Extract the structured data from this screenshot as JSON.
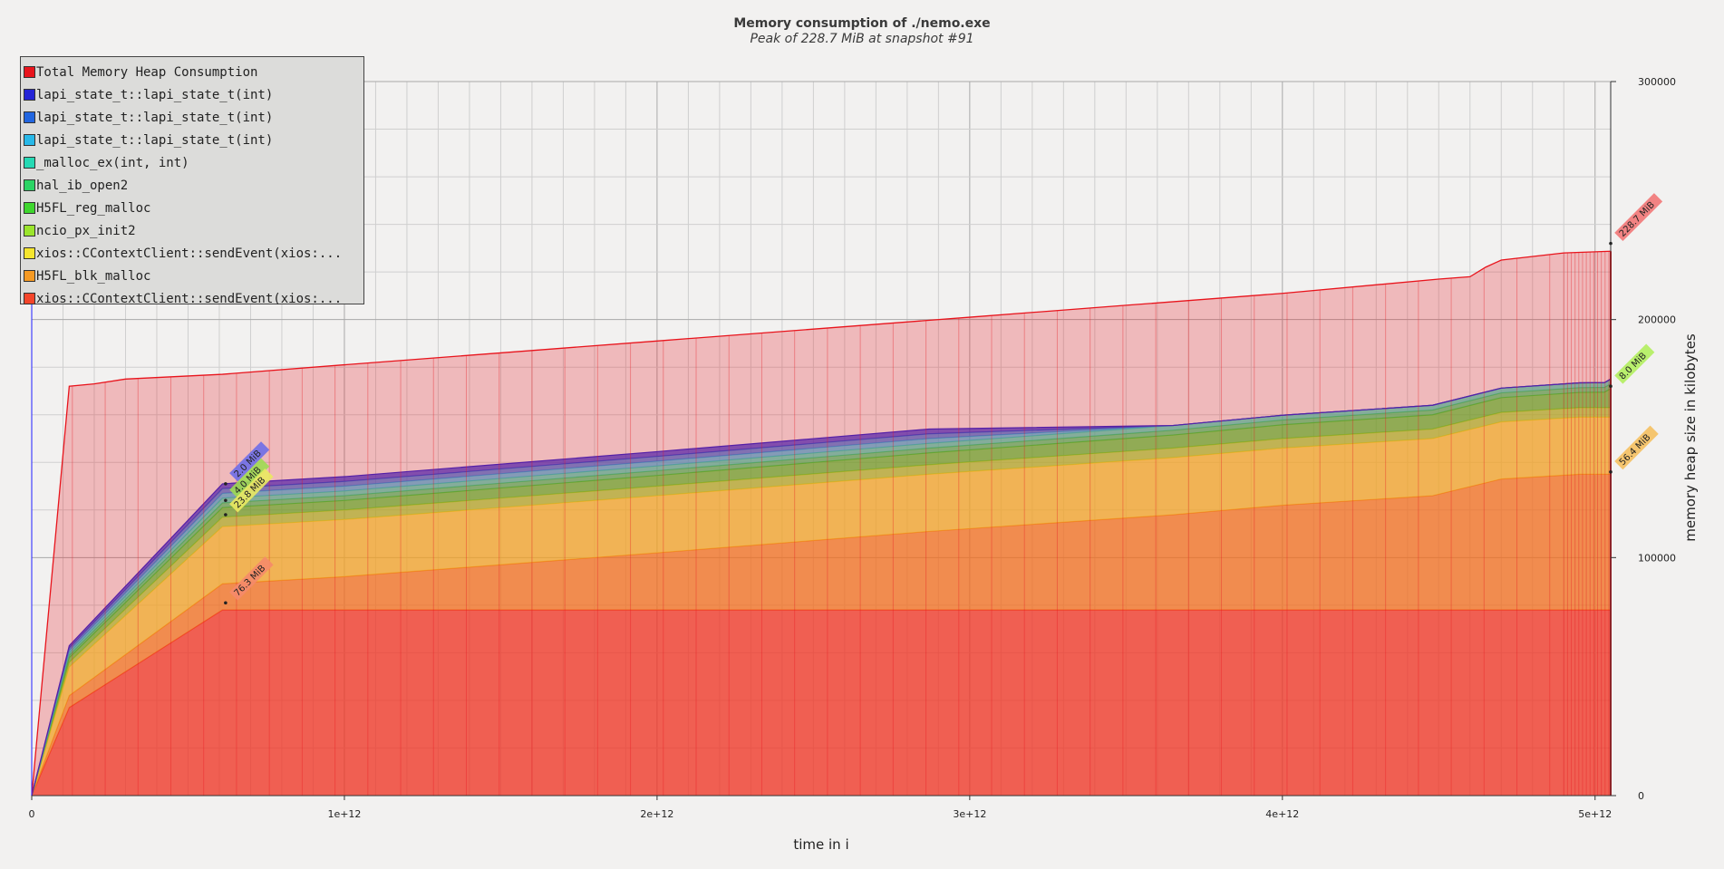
{
  "title": "Memory consumption of ./nemo.exe",
  "subtitle": "Peak of 228.7 MiB at snapshot #91",
  "chart_data": {
    "type": "area",
    "stacked": true,
    "xlabel": "time in i",
    "ylabel": "memory heap size in kilobytes",
    "xlim": [
      0,
      5050000000000.0
    ],
    "ylim": [
      0,
      300000
    ],
    "x_ticks": [
      {
        "value": 0,
        "label": "0"
      },
      {
        "value": 1000000000000.0,
        "label": "1e+12"
      },
      {
        "value": 2000000000000.0,
        "label": "2e+12"
      },
      {
        "value": 3000000000000.0,
        "label": "3e+12"
      },
      {
        "value": 4000000000000.0,
        "label": "4e+12"
      },
      {
        "value": 5000000000000.0,
        "label": "5e+12"
      }
    ],
    "y_ticks": [
      {
        "value": 0,
        "label": "0"
      },
      {
        "value": 100000,
        "label": "100000"
      },
      {
        "value": 200000,
        "label": "200000"
      },
      {
        "value": 300000,
        "label": "300000"
      }
    ],
    "grid": true,
    "legend_position": "top-left",
    "x": [
      0,
      120000000000.0,
      610000000000.0,
      1000000000000.0,
      2000000000000.0,
      2870000000000.0,
      3650000000000.0,
      4000000000000.0,
      4480000000000.0,
      4700000000000.0,
      4950000000000.0,
      5030000000000.0,
      5050000000000.0
    ],
    "series": [
      {
        "name": "xios::CContextClient::sendEvent(xios:...",
        "color": "#f4452a",
        "values": [
          0,
          37000,
          78000,
          78000,
          78000,
          78000,
          78000,
          78000,
          78000,
          78000,
          78000,
          78000,
          78000
        ]
      },
      {
        "name": "H5FL_blk_malloc",
        "color": "#f59a24",
        "values": [
          0,
          5000,
          11000,
          14000,
          24000,
          33000,
          40000,
          44000,
          48000,
          55000,
          57000,
          57000,
          57000
        ]
      },
      {
        "name": "xios::CContextClient::sendEvent(xios:...",
        "color": "#f5e52e",
        "values": [
          0,
          12000,
          24000,
          24000,
          24000,
          24000,
          24000,
          24000,
          24000,
          24000,
          24000,
          24000,
          24000
        ]
      },
      {
        "name": "ncio_px_init2",
        "color": "#9be52c",
        "values": [
          0,
          2000,
          4000,
          4000,
          4000,
          4000,
          4000,
          4000,
          4000,
          4000,
          4000,
          4000,
          4000
        ]
      },
      {
        "name": "H5FL_reg_malloc",
        "color": "#3ed62e",
        "values": [
          0,
          2000,
          4000,
          4000,
          4500,
          5000,
          5500,
          5800,
          6000,
          6200,
          6400,
          6500,
          8000
        ]
      },
      {
        "name": "hal_ib_open2",
        "color": "#2bd465",
        "values": [
          0,
          1000,
          2000,
          2000,
          2000,
          2000,
          2000,
          2000,
          2000,
          2000,
          2000,
          2000,
          2000
        ]
      },
      {
        "name": "_malloc_ex(int, int)",
        "color": "#26d9b4",
        "values": [
          0,
          1000,
          2000,
          2000,
          2000,
          2000,
          2000,
          2000,
          2000,
          2000,
          2000,
          2000,
          2000
        ]
      },
      {
        "name": "lapi_state_t::lapi_state_t(int)",
        "color": "#27b8e8",
        "values": [
          0,
          1000,
          2000,
          2000,
          2000,
          2000,
          0,
          0,
          0,
          0,
          0,
          0,
          0
        ]
      },
      {
        "name": "lapi_state_t::lapi_state_t(int)",
        "color": "#2266e0",
        "values": [
          0,
          1000,
          2000,
          2000,
          2000,
          2000,
          0,
          0,
          0,
          0,
          0,
          0,
          0
        ]
      },
      {
        "name": "lapi_state_t::lapi_state_t(int)",
        "color": "#2424d6",
        "values": [
          0,
          1000,
          2000,
          2000,
          2000,
          2000,
          0,
          0,
          0,
          0,
          0,
          0,
          0
        ]
      }
    ],
    "total": {
      "name": "Total Memory Heap Consumption",
      "color": "#e8141c",
      "x": [
        0,
        120000000000.0,
        200000000000.0,
        300000000000.0,
        610000000000.0,
        1000000000000.0,
        1500000000000.0,
        2000000000000.0,
        2500000000000.0,
        3000000000000.0,
        3500000000000.0,
        4000000000000.0,
        4500000000000.0,
        4600000000000.0,
        4650000000000.0,
        4700000000000.0,
        4900000000000.0,
        5050000000000.0
      ],
      "values": [
        0,
        172000,
        173000,
        175000,
        177000,
        181000,
        186000,
        191000,
        196000,
        201000,
        206000,
        211000,
        217000,
        218000,
        222000,
        225000,
        228000,
        228700
      ]
    },
    "annotations": [
      {
        "text": "2.0 MiB",
        "x": 620000000000.0,
        "y": 131000,
        "color": "#6e6ee8"
      },
      {
        "text": "4.0 MiB",
        "x": 620000000000.0,
        "y": 124000,
        "color": "#9ddc52"
      },
      {
        "text": "23.8 MiB",
        "x": 620000000000.0,
        "y": 118000,
        "color": "#eaea60"
      },
      {
        "text": "76.3 MiB",
        "x": 620000000000.0,
        "y": 81000,
        "color": "#f58a6a"
      },
      {
        "text": "228.7 MiB",
        "x": 5050000000000.0,
        "y": 232000,
        "color": "#f27777"
      },
      {
        "text": "8.0 MiB",
        "x": 5050000000000.0,
        "y": 172000,
        "color": "#b3ee5e"
      },
      {
        "text": "56.4 MiB",
        "x": 5050000000000.0,
        "y": 136000,
        "color": "#f5c060"
      }
    ]
  },
  "legend": {
    "items": [
      {
        "label": "Total Memory Heap Consumption",
        "color": "#e8141c"
      },
      {
        "label": "lapi_state_t::lapi_state_t(int)",
        "color": "#2424d6"
      },
      {
        "label": "lapi_state_t::lapi_state_t(int)",
        "color": "#2266e0"
      },
      {
        "label": "lapi_state_t::lapi_state_t(int)",
        "color": "#27b8e8"
      },
      {
        "label": "_malloc_ex(int, int)",
        "color": "#26d9b4"
      },
      {
        "label": "hal_ib_open2",
        "color": "#2bd465"
      },
      {
        "label": "H5FL_reg_malloc",
        "color": "#3ed62e"
      },
      {
        "label": "ncio_px_init2",
        "color": "#9be52c"
      },
      {
        "label": "xios::CContextClient::sendEvent(xios:...",
        "color": "#f5e52e"
      },
      {
        "label": "H5FL_blk_malloc",
        "color": "#f59a24"
      },
      {
        "label": "xios::CContextClient::sendEvent(xios:...",
        "color": "#f4452a"
      }
    ]
  }
}
